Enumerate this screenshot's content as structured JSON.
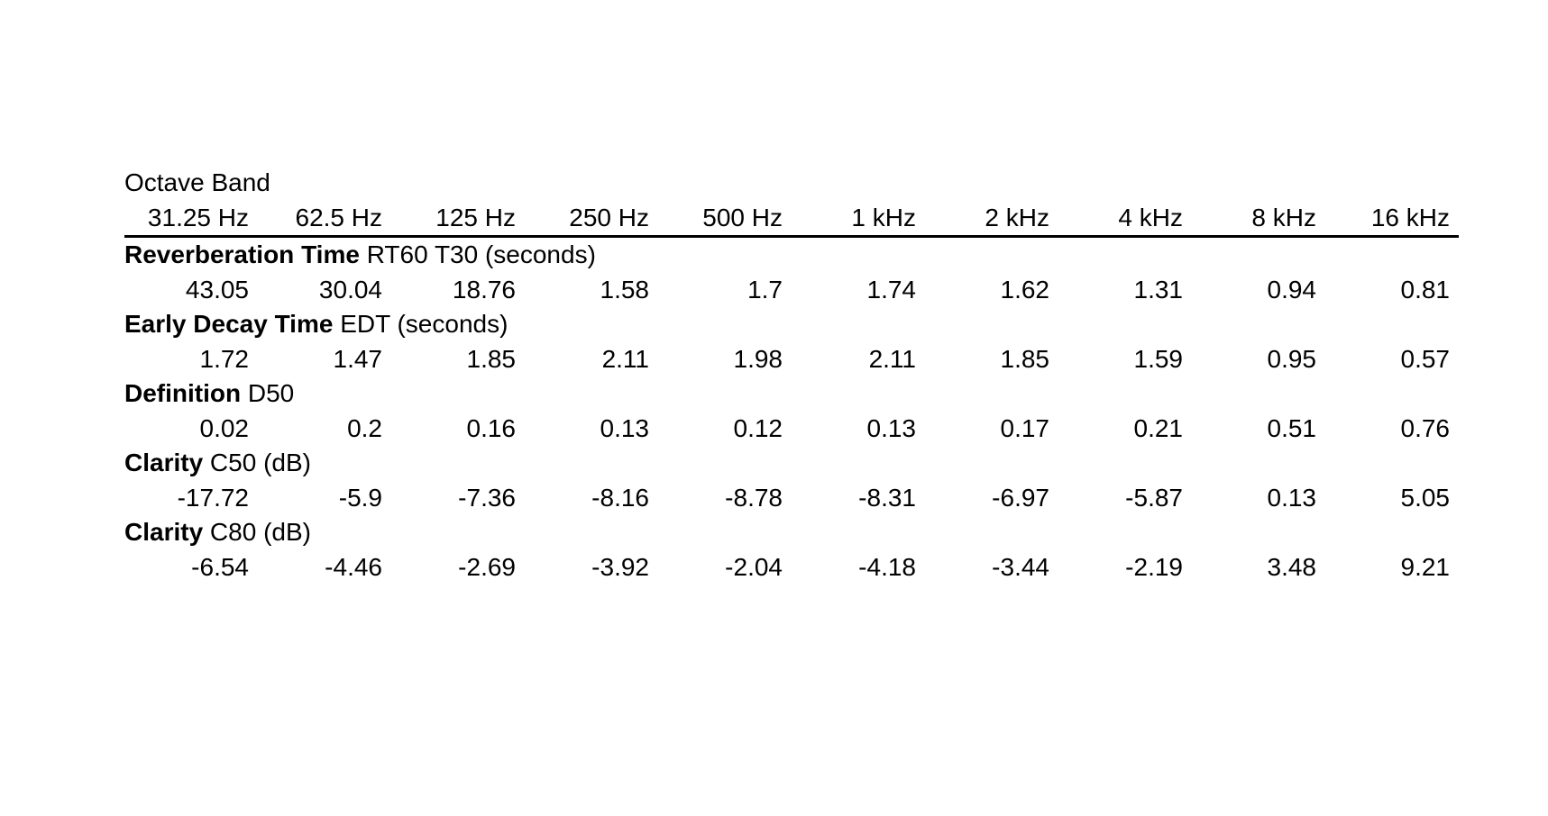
{
  "page": {
    "background_color": "#ffffff",
    "text_color": "#000000",
    "rule_color": "#000000"
  },
  "table": {
    "title": "Octave Band",
    "columns": [
      "31.25 Hz",
      "62.5 Hz",
      "125 Hz",
      "250 Hz",
      "500 Hz",
      "1 kHz",
      "2 kHz",
      "4 kHz",
      "8 kHz",
      "16 kHz"
    ],
    "metrics": [
      {
        "name": "Reverberation Time",
        "suffix": "RT60 T30 (seconds)",
        "values": [
          43.05,
          30.04,
          18.76,
          1.58,
          1.7,
          1.74,
          1.62,
          1.31,
          0.94,
          0.81
        ]
      },
      {
        "name": "Early Decay Time",
        "suffix": "EDT (seconds)",
        "values": [
          1.72,
          1.47,
          1.85,
          2.11,
          1.98,
          2.11,
          1.85,
          1.59,
          0.95,
          0.57
        ]
      },
      {
        "name": "Definition",
        "suffix": "D50",
        "values": [
          0.02,
          0.2,
          0.16,
          0.13,
          0.12,
          0.13,
          0.17,
          0.21,
          0.51,
          0.76
        ]
      },
      {
        "name": "Clarity",
        "suffix": "C50 (dB)",
        "values": [
          -17.72,
          -5.9,
          -7.36,
          -8.16,
          -8.78,
          -8.31,
          -6.97,
          -5.87,
          0.13,
          5.05
        ]
      },
      {
        "name": "Clarity",
        "suffix": "C80 (dB)",
        "values": [
          -6.54,
          -4.46,
          -2.69,
          -3.92,
          -2.04,
          -4.18,
          -3.44,
          -2.19,
          3.48,
          9.21
        ]
      }
    ]
  },
  "chart_data": {
    "type": "table",
    "title": "Octave Band",
    "categories": [
      "31.25 Hz",
      "62.5 Hz",
      "125 Hz",
      "250 Hz",
      "500 Hz",
      "1 kHz",
      "2 kHz",
      "4 kHz",
      "8 kHz",
      "16 kHz"
    ],
    "series": [
      {
        "name": "Reverberation Time RT60 T30 (seconds)",
        "values": [
          43.05,
          30.04,
          18.76,
          1.58,
          1.7,
          1.74,
          1.62,
          1.31,
          0.94,
          0.81
        ]
      },
      {
        "name": "Early Decay Time EDT (seconds)",
        "values": [
          1.72,
          1.47,
          1.85,
          2.11,
          1.98,
          2.11,
          1.85,
          1.59,
          0.95,
          0.57
        ]
      },
      {
        "name": "Definition D50",
        "values": [
          0.02,
          0.2,
          0.16,
          0.13,
          0.12,
          0.13,
          0.17,
          0.21,
          0.51,
          0.76
        ]
      },
      {
        "name": "Clarity C50 (dB)",
        "values": [
          -17.72,
          -5.9,
          -7.36,
          -8.16,
          -8.78,
          -8.31,
          -6.97,
          -5.87,
          0.13,
          5.05
        ]
      },
      {
        "name": "Clarity C80 (dB)",
        "values": [
          -6.54,
          -4.46,
          -2.69,
          -3.92,
          -2.04,
          -4.18,
          -3.44,
          -2.19,
          3.48,
          9.21
        ]
      }
    ],
    "layout": {
      "header_rule": true,
      "grid": false,
      "values_alignment": "right"
    }
  }
}
